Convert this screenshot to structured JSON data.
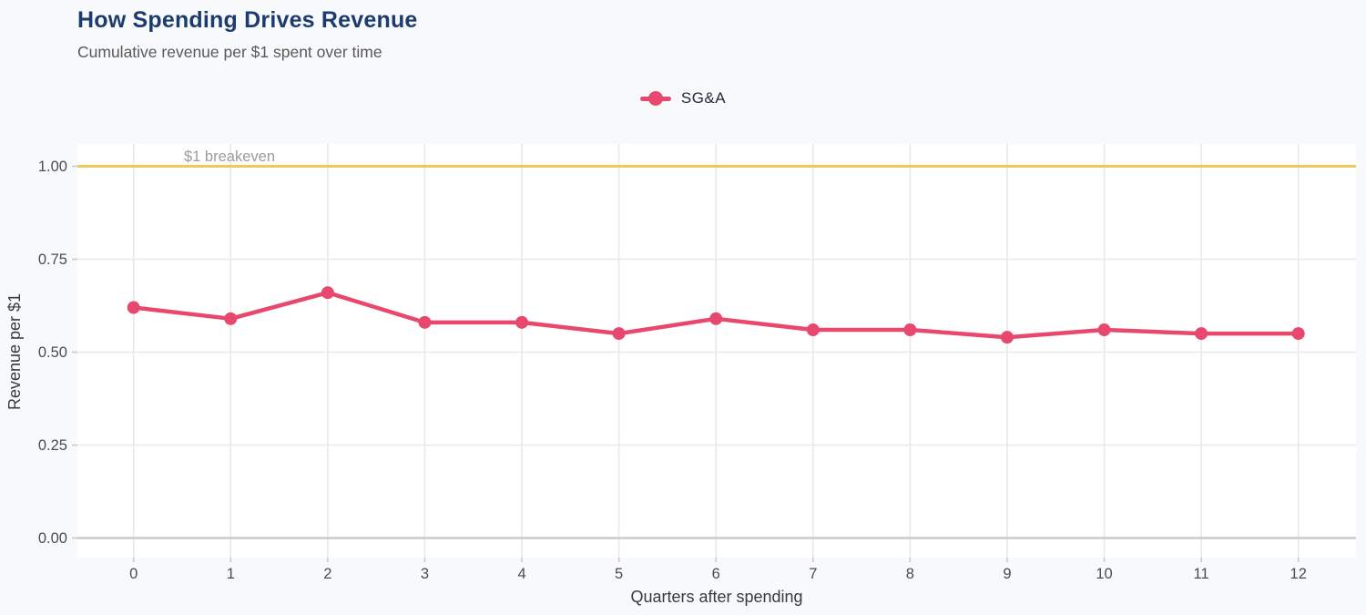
{
  "header": {
    "title": "How Spending Drives Revenue",
    "subtitle": "Cumulative revenue per $1 spent over time"
  },
  "legend": {
    "series_label": "SG&A"
  },
  "colors": {
    "series": "#e8486d",
    "breakeven_line": "#edc95c",
    "title": "#1c3c6e",
    "subtitle": "#595959",
    "axis_tick_text": "#4c4c4c",
    "axis_title_text": "#3a3a3a",
    "annotation_text": "#9b9b9b",
    "grid": "#e8e9ec",
    "zero_line": "#c9cacc",
    "plot_bg": "#ffffff",
    "page_bg": "#f8f9fb"
  },
  "chart_data": {
    "type": "line",
    "title": "How Spending Drives Revenue",
    "subtitle": "Cumulative revenue per $1 spent over time",
    "xlabel": "Quarters after spending",
    "ylabel": "Revenue per $1",
    "x": [
      0,
      1,
      2,
      3,
      4,
      5,
      6,
      7,
      8,
      9,
      10,
      11,
      12
    ],
    "xtick_labels": [
      "0",
      "1",
      "2",
      "3",
      "4",
      "5",
      "6",
      "7",
      "8",
      "9",
      "10",
      "11",
      "12"
    ],
    "series": [
      {
        "name": "SG&A",
        "values": [
          0.62,
          0.59,
          0.66,
          0.58,
          0.58,
          0.55,
          0.59,
          0.56,
          0.56,
          0.54,
          0.56,
          0.55,
          0.55
        ]
      }
    ],
    "yticks": [
      0,
      0.25,
      0.5,
      0.75,
      1
    ],
    "ytick_labels": [
      "0.00",
      "0.25",
      "0.50",
      "0.75",
      "1.00"
    ],
    "ylim": [
      -0.05,
      1.06
    ],
    "grid": true,
    "legend_position": "top-center",
    "annotation": {
      "label": "$1 breakeven",
      "y": 1.0
    }
  }
}
